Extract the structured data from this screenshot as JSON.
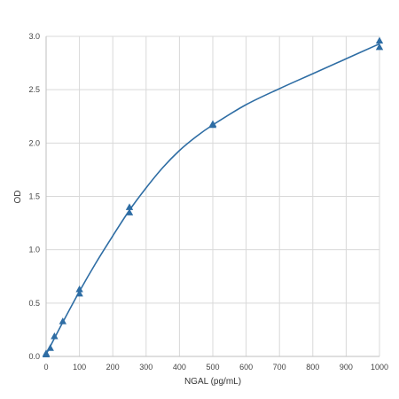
{
  "chart_data": {
    "type": "scatter",
    "title": "",
    "xlabel": "NGAL (pg/mL)",
    "ylabel": "OD",
    "xlim": [
      0,
      1000
    ],
    "ylim": [
      0,
      3.0
    ],
    "x_ticks": [
      0,
      100,
      200,
      300,
      400,
      500,
      600,
      700,
      800,
      900,
      1000
    ],
    "y_ticks": [
      "0.0",
      "0.5",
      "1.0",
      "1.5",
      "2.0",
      "2.5",
      "3.0"
    ],
    "grid": true,
    "legend": "none",
    "marker": "triangle",
    "color": "#2e6da4",
    "series": [
      {
        "points": [
          {
            "x": 0,
            "y": 0.03
          },
          {
            "x": 0,
            "y": 0.02
          },
          {
            "x": 12.5,
            "y": 0.08
          },
          {
            "x": 25,
            "y": 0.19
          },
          {
            "x": 50,
            "y": 0.33
          },
          {
            "x": 100,
            "y": 0.63
          },
          {
            "x": 100,
            "y": 0.59
          },
          {
            "x": 250,
            "y": 1.4
          },
          {
            "x": 250,
            "y": 1.35
          },
          {
            "x": 500,
            "y": 2.18
          },
          {
            "x": 500,
            "y": 2.17
          },
          {
            "x": 1000,
            "y": 2.96
          },
          {
            "x": 1000,
            "y": 2.9
          }
        ]
      }
    ],
    "fit_curve": {
      "type": "line",
      "points": [
        {
          "x": 0,
          "y": 0.02
        },
        {
          "x": 25,
          "y": 0.17
        },
        {
          "x": 50,
          "y": 0.32
        },
        {
          "x": 100,
          "y": 0.61
        },
        {
          "x": 150,
          "y": 0.88
        },
        {
          "x": 200,
          "y": 1.13
        },
        {
          "x": 250,
          "y": 1.37
        },
        {
          "x": 300,
          "y": 1.58
        },
        {
          "x": 350,
          "y": 1.77
        },
        {
          "x": 400,
          "y": 1.93
        },
        {
          "x": 450,
          "y": 2.06
        },
        {
          "x": 500,
          "y": 2.17
        },
        {
          "x": 600,
          "y": 2.36
        },
        {
          "x": 700,
          "y": 2.51
        },
        {
          "x": 800,
          "y": 2.65
        },
        {
          "x": 900,
          "y": 2.79
        },
        {
          "x": 1000,
          "y": 2.93
        }
      ]
    }
  }
}
